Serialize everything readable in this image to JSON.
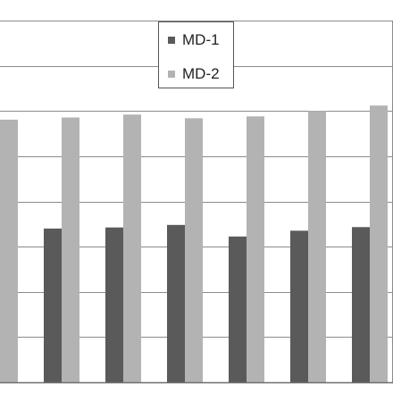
{
  "chart_data": {
    "type": "bar",
    "title": "",
    "xlabel": "",
    "ylabel": "",
    "ylim": [
      0,
      1
    ],
    "gridlines": 8,
    "grid": true,
    "categories": [
      "",
      "",
      "",
      "",
      "",
      "",
      ""
    ],
    "series": [
      {
        "name": "MD-1",
        "color": "#5a5a5a",
        "values": [
          null,
          0.425,
          0.428,
          0.435,
          0.403,
          0.419,
          0.429
        ]
      },
      {
        "name": "MD-2",
        "color": "#b3b3b3",
        "values": [
          0.726,
          0.732,
          0.74,
          0.73,
          0.735,
          0.75,
          0.765
        ]
      }
    ],
    "legend": {
      "position": "top-center"
    }
  }
}
